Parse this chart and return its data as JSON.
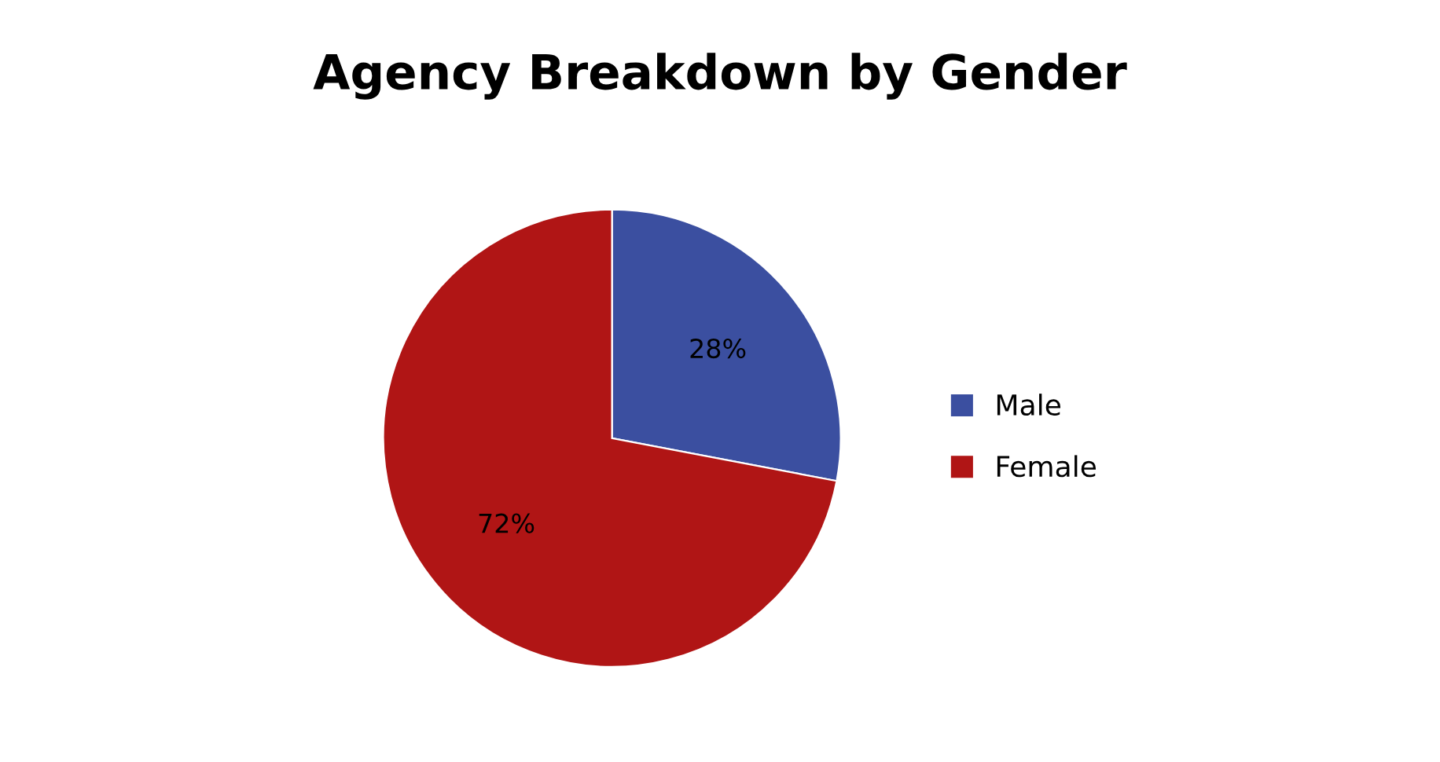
{
  "chart_data": {
    "type": "pie",
    "title": "Agency Breakdown by Gender",
    "categories": [
      "Male",
      "Female"
    ],
    "values": [
      28,
      72
    ],
    "colors": [
      "#3b4fa0",
      "#b01515"
    ],
    "value_labels": [
      "28%",
      "72%"
    ],
    "legend": "right"
  }
}
